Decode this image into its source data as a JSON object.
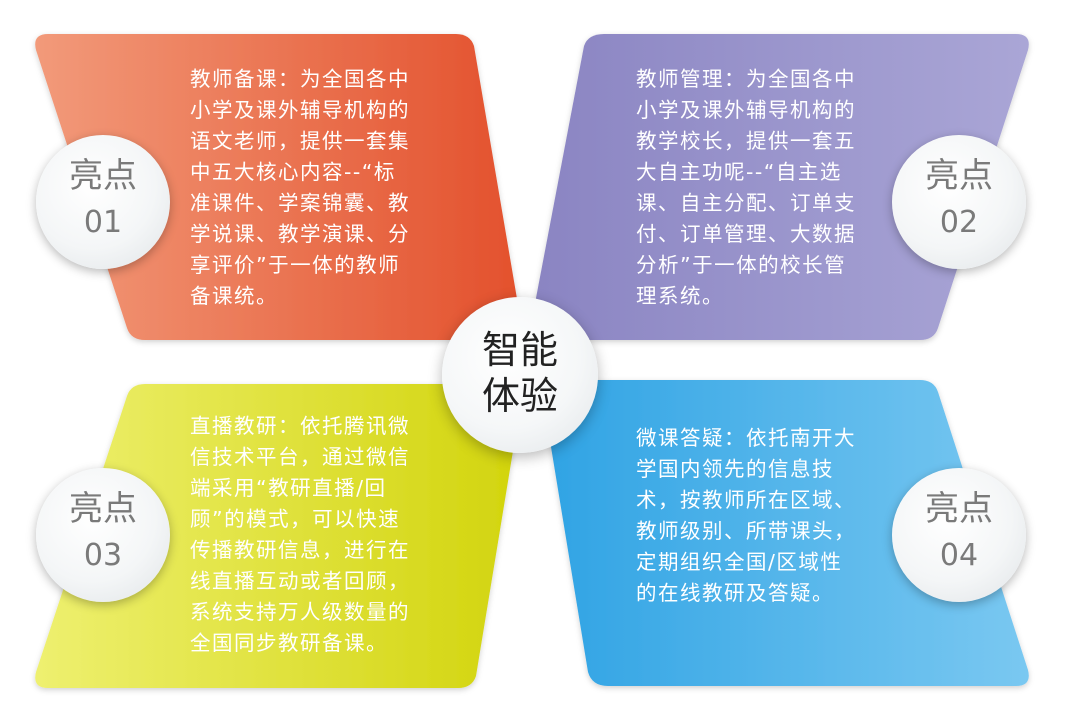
{
  "center": {
    "line1": "智能",
    "line2": "体验"
  },
  "colors": {
    "p1": [
      "#f29a7a",
      "#e3502c"
    ],
    "p2": [
      "#8a84c2",
      "#aaa6d6"
    ],
    "p3": [
      "#d2d40c",
      "#eef070"
    ],
    "p4": [
      "#2fa3e4",
      "#7ac8f1"
    ]
  },
  "highlights": [
    {
      "badge_title": "亮点",
      "badge_num": "01",
      "text": "教师备课：为全国各中\n小学及课外辅导机构的\n语文老师，提供一套集\n中五大核心内容--“标\n准课件、学案锦囊、教\n学说课、教学演课、分\n享评价”于一体的教师\n备课统。"
    },
    {
      "badge_title": "亮点",
      "badge_num": "02",
      "text": "教师管理：为全国各中\n小学及课外辅导机构的\n教学校长，提供一套五\n大自主功呢--“自主选\n课、自主分配、订单支\n付、订单管理、大数据\n分析”于一体的校长管\n理系统。"
    },
    {
      "badge_title": "亮点",
      "badge_num": "03",
      "text": "直播教研：依托腾讯微\n信技术平台，通过微信\n端采用“教研直播/回\n顾”的模式，可以快速\n传播教研信息，进行在\n线直播互动或者回顾，\n系统支持万人级数量的\n全国同步教研备课。"
    },
    {
      "badge_title": "亮点",
      "badge_num": "04",
      "text": "微课答疑：依托南开大\n学国内领先的信息技\n术，按教师所在区域、\n教师级别、所带课头，\n定期组织全国/区域性\n的在线教研及答疑。"
    }
  ]
}
